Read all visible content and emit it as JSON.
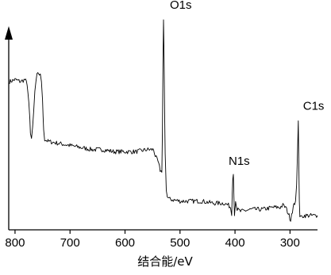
{
  "chart_data": {
    "type": "line",
    "title": "",
    "xlabel": "结合能/eV",
    "ylabel": "",
    "x_reversed": true,
    "xlim": [
      810,
      250
    ],
    "ylim": [
      0,
      100
    ],
    "y_ticks_shown": false,
    "grid": false,
    "legend": "none",
    "x_ticks": [
      800,
      700,
      600,
      500,
      400,
      300
    ],
    "x_tick_labels": [
      "800",
      "700",
      "600",
      "500",
      "400",
      "300"
    ],
    "line_color": "#000000",
    "annotations": [
      {
        "text": "O1s",
        "x": 530,
        "y": 100
      },
      {
        "text": "N1s",
        "x": 403,
        "y": 25
      },
      {
        "text": "C1s",
        "x": 285,
        "y": 51
      }
    ],
    "series": [
      {
        "points": [
          [
            810,
            70
          ],
          [
            800,
            71
          ],
          [
            790,
            70
          ],
          [
            782,
            71
          ],
          [
            778,
            69
          ],
          [
            775,
            60
          ],
          [
            773,
            52
          ],
          [
            772,
            44
          ],
          [
            770,
            42
          ],
          [
            768,
            48
          ],
          [
            766,
            56
          ],
          [
            764,
            65
          ],
          [
            762,
            70
          ],
          [
            760,
            73
          ],
          [
            757,
            74
          ],
          [
            754,
            73
          ],
          [
            752,
            70
          ],
          [
            750,
            61
          ],
          [
            749,
            53
          ],
          [
            748,
            47
          ],
          [
            746,
            42
          ],
          [
            740,
            41
          ],
          [
            720,
            40
          ],
          [
            700,
            39
          ],
          [
            680,
            38
          ],
          [
            660,
            37
          ],
          [
            640,
            37
          ],
          [
            620,
            36
          ],
          [
            600,
            36
          ],
          [
            580,
            36
          ],
          [
            560,
            37
          ],
          [
            548,
            37
          ],
          [
            545,
            34
          ],
          [
            540,
            31
          ],
          [
            536,
            27
          ],
          [
            533,
            26
          ],
          [
            532,
            45
          ],
          [
            531,
            78
          ],
          [
            530,
            100
          ],
          [
            529,
            82
          ],
          [
            528,
            55
          ],
          [
            527,
            35
          ],
          [
            525,
            18
          ],
          [
            523,
            14
          ],
          [
            520,
            13
          ],
          [
            500,
            12
          ],
          [
            480,
            12
          ],
          [
            460,
            12
          ],
          [
            440,
            11
          ],
          [
            420,
            11
          ],
          [
            412,
            10
          ],
          [
            408,
            9
          ],
          [
            406,
            5
          ],
          [
            405,
            16
          ],
          [
            404,
            24
          ],
          [
            403,
            25
          ],
          [
            402,
            14
          ],
          [
            401,
            6
          ],
          [
            399,
            12
          ],
          [
            398,
            11
          ],
          [
            396,
            8
          ],
          [
            390,
            7
          ],
          [
            370,
            8
          ],
          [
            350,
            8
          ],
          [
            330,
            9
          ],
          [
            318,
            9
          ],
          [
            313,
            10
          ],
          [
            308,
            9
          ],
          [
            303,
            6
          ],
          [
            299,
            3
          ],
          [
            297,
            6
          ],
          [
            293,
            10
          ],
          [
            290,
            12
          ],
          [
            288,
            20
          ],
          [
            286,
            40
          ],
          [
            285,
            51
          ],
          [
            284,
            32
          ],
          [
            283,
            12
          ],
          [
            282,
            5
          ],
          [
            280,
            4
          ],
          [
            275,
            5
          ],
          [
            265,
            5
          ],
          [
            255,
            5
          ],
          [
            250,
            5
          ]
        ]
      }
    ]
  }
}
